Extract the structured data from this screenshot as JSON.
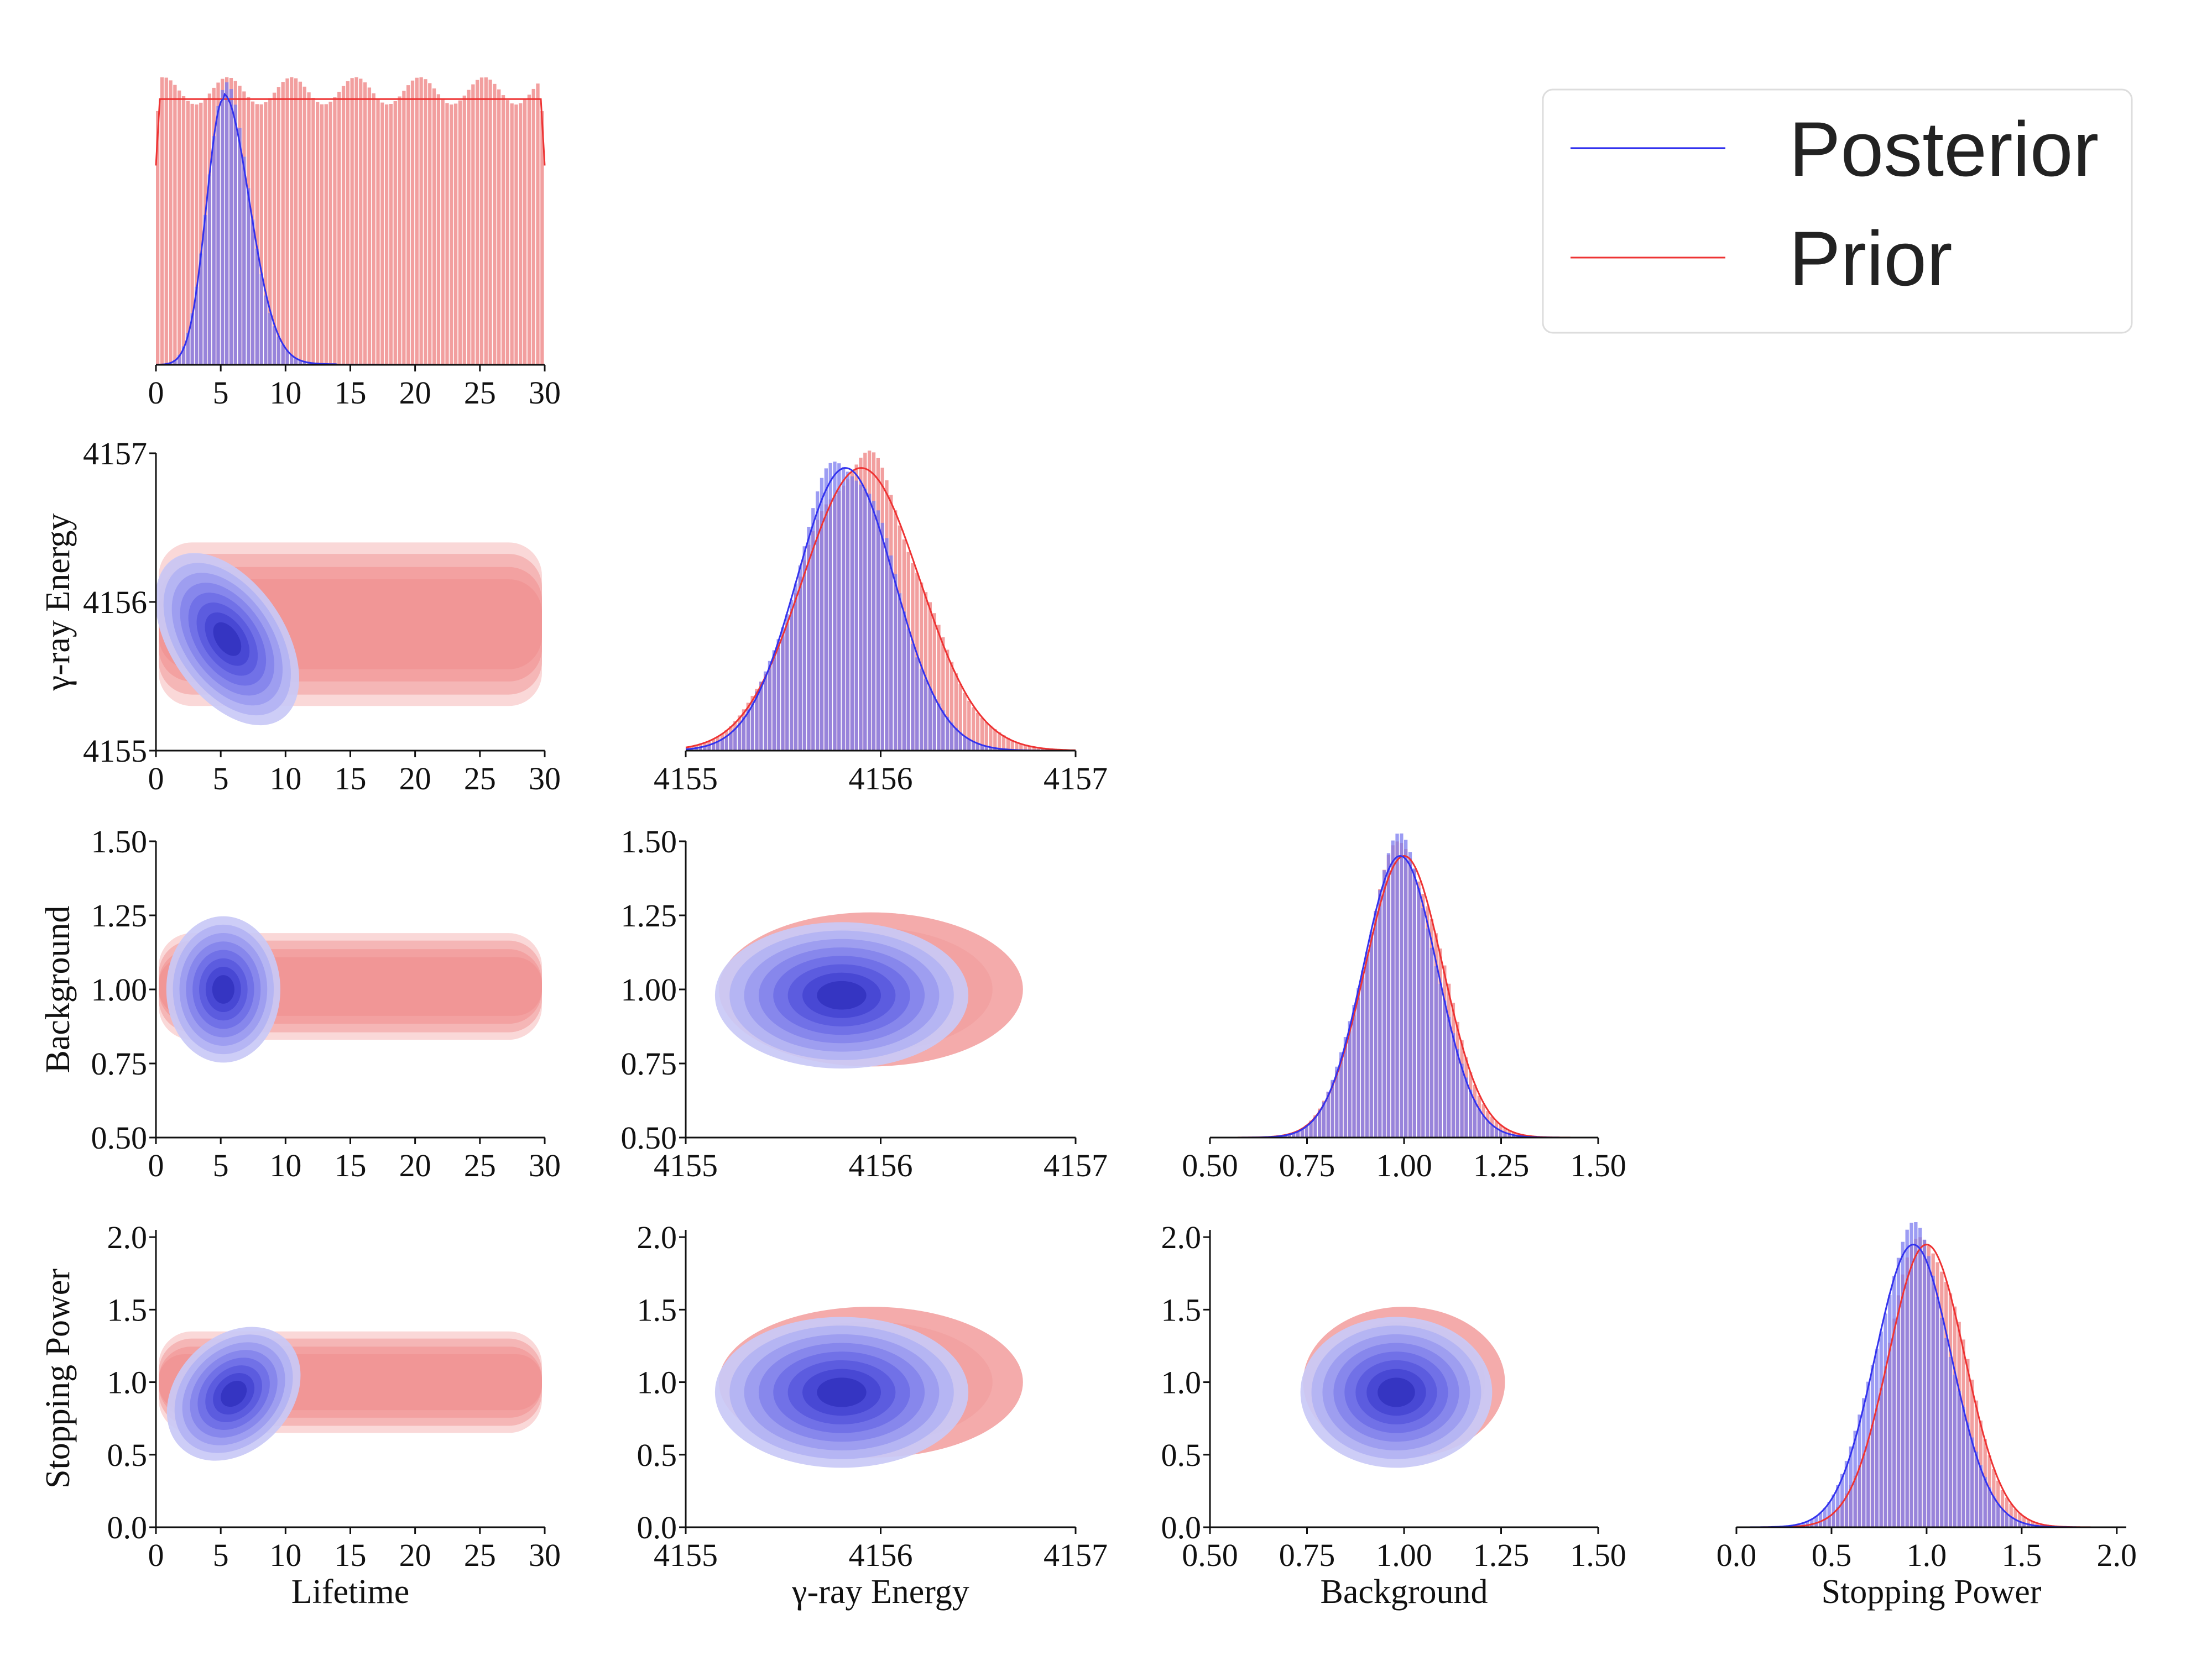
{
  "chart_data": {
    "type": "corner",
    "colors": {
      "posterior": "#3333ee",
      "prior": "#ee3333",
      "posterior_fill": "#7b7bf0",
      "prior_fill": "#f08f8f"
    },
    "legend": {
      "placement": "top-right",
      "entries": [
        {
          "name": "Posterior",
          "color": "#2222ee"
        },
        {
          "name": "Prior",
          "color": "#ee3333"
        }
      ]
    },
    "parameters": [
      {
        "name": "Lifetime",
        "label": "Lifetime",
        "range": [
          0,
          30
        ],
        "ticks": [
          "0",
          "5",
          "10",
          "15",
          "20",
          "25",
          "30"
        ],
        "prior": {
          "distribution": "uniform",
          "low": 0,
          "high": 30
        },
        "posterior": {
          "mode": 5.2,
          "width_left": 1.3,
          "width_right": 2.0,
          "tail_to": 14
        }
      },
      {
        "name": "γ-ray Energy",
        "label": "γ-ray Energy",
        "range": [
          4155,
          4157
        ],
        "ticks": [
          "4155",
          "4156",
          "4157"
        ],
        "prior": {
          "distribution": "normal",
          "mean": 4155.9,
          "sd": 0.3
        },
        "posterior": {
          "mean": 4155.82,
          "sd": 0.25
        }
      },
      {
        "name": "Background",
        "label": "Background",
        "range": [
          0.5,
          1.5
        ],
        "ticks": [
          "0.50",
          "0.75",
          "1.00",
          "1.25",
          "1.50"
        ],
        "prior": {
          "distribution": "normal",
          "mean": 1.0,
          "sd": 0.1
        },
        "posterior": {
          "mean": 0.99,
          "sd": 0.095
        }
      },
      {
        "name": "Stopping Power",
        "label": "Stopping Power",
        "range": [
          0.0,
          2.05
        ],
        "ticks": [
          "0.0",
          "0.5",
          "1.0",
          "1.5",
          "2.0"
        ],
        "prior": {
          "distribution": "normal",
          "mean": 1.0,
          "sd": 0.2
        },
        "posterior": {
          "mean": 0.93,
          "sd": 0.2
        }
      }
    ],
    "diagonal_y_labels": [
      {
        "parameter": "γ-ray Energy",
        "label": "γ-ray Energy",
        "ticks": [
          "4155",
          "4156",
          "4157"
        ]
      },
      {
        "parameter": "Background",
        "label": "Background",
        "ticks": [
          "0.50",
          "0.75",
          "1.00",
          "1.25",
          "1.50"
        ]
      },
      {
        "parameter": "Stopping Power",
        "label": "Stopping Power",
        "ticks": [
          "0.0",
          "0.5",
          "1.0",
          "1.5",
          "2.0"
        ]
      }
    ],
    "pairs": [
      {
        "x": "Lifetime",
        "y": "γ-ray Energy",
        "prior_region": {
          "x": [
            0,
            30
          ],
          "y": [
            4155.3,
            4156.4
          ]
        },
        "posterior_center": [
          5.5,
          4155.75
        ],
        "correlation": 0.4
      },
      {
        "x": "Lifetime",
        "y": "Background",
        "prior_region": {
          "x": [
            0,
            30
          ],
          "y": [
            0.83,
            1.19
          ]
        },
        "posterior_center": [
          5.2,
          1.0
        ],
        "correlation": 0.0
      },
      {
        "x": "γ-ray Energy",
        "y": "Background",
        "prior_center": [
          4155.95,
          1.0
        ],
        "posterior_center": [
          4155.8,
          0.98
        ],
        "correlation": 0.0
      },
      {
        "x": "Lifetime",
        "y": "Stopping Power",
        "prior_region": {
          "x": [
            0,
            30
          ],
          "y": [
            0.65,
            1.35
          ]
        },
        "posterior_center": [
          6.0,
          0.92
        ],
        "correlation": -0.75
      },
      {
        "x": "γ-ray Energy",
        "y": "Stopping Power",
        "prior_center": [
          4155.95,
          1.0
        ],
        "posterior_center": [
          4155.8,
          0.93
        ],
        "correlation": 0.0
      },
      {
        "x": "Background",
        "y": "Stopping Power",
        "prior_center": [
          1.0,
          1.0
        ],
        "posterior_center": [
          0.98,
          0.93
        ],
        "correlation": 0.0
      }
    ]
  }
}
